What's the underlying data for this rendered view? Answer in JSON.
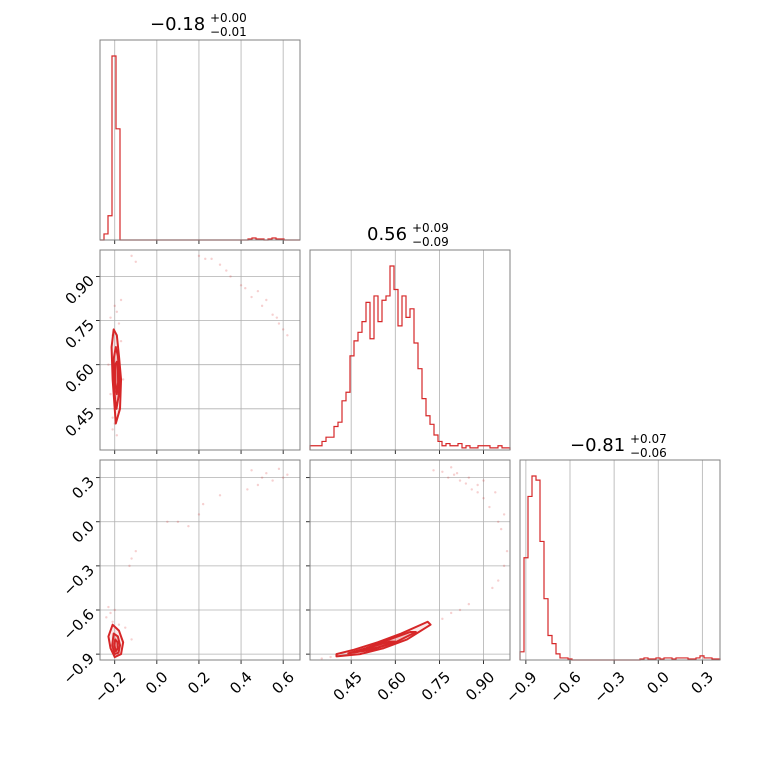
{
  "chart_data": {
    "type": "corner",
    "color": "#d62728",
    "grid": true,
    "parameters": [
      {
        "index": 0,
        "range": [
          -0.27,
          0.68
        ],
        "ticks": [
          "−0.2",
          "0.0",
          "0.2",
          "0.4",
          "0.6"
        ],
        "tick_values": [
          -0.2,
          0.0,
          0.2,
          0.4,
          0.6
        ]
      },
      {
        "index": 1,
        "range": [
          0.31,
          0.99
        ],
        "ticks": [
          "0.45",
          "0.60",
          "0.75",
          "0.90"
        ],
        "tick_values": [
          0.45,
          0.6,
          0.75,
          0.9
        ]
      },
      {
        "index": 2,
        "range": [
          -0.94,
          0.42
        ],
        "ticks": [
          "−0.9",
          "−0.6",
          "−0.3",
          "0.0",
          "0.3"
        ],
        "tick_values": [
          -0.9,
          -0.6,
          -0.3,
          0.0,
          0.3
        ]
      }
    ],
    "titles": [
      {
        "median": "−0.18",
        "plus": "+0.00",
        "minus": "−0.01"
      },
      {
        "median": "0.56",
        "plus": "+0.09",
        "minus": "−0.09"
      },
      {
        "median": "−0.81",
        "plus": "+0.07",
        "minus": "−0.06"
      }
    ],
    "histograms": [
      {
        "bin_start": -0.27,
        "bin_width": 0.019,
        "counts": [
          0,
          0.03,
          0.12,
          0.91,
          0.55,
          0,
          0,
          0,
          0,
          0,
          0,
          0,
          0,
          0,
          0,
          0,
          0,
          0,
          0,
          0,
          0,
          0,
          0,
          0,
          0,
          0,
          0,
          0,
          0,
          0,
          0,
          0,
          0,
          0,
          0,
          0,
          0,
          0.005,
          0.01,
          0.005,
          0.005,
          0,
          0.005,
          0.01,
          0.005,
          0.005,
          0,
          0,
          0,
          0
        ]
      },
      {
        "bin_start": 0.31,
        "bin_width": 0.0136,
        "counts": [
          0.02,
          0.02,
          0.02,
          0.04,
          0.06,
          0.06,
          0.11,
          0.13,
          0.23,
          0.27,
          0.44,
          0.51,
          0.55,
          0.6,
          0.69,
          0.52,
          0.72,
          0.6,
          0.7,
          0.72,
          0.86,
          0.75,
          0.58,
          0.72,
          0.62,
          0.66,
          0.5,
          0.38,
          0.24,
          0.16,
          0.12,
          0.07,
          0.04,
          0.02,
          0.03,
          0.02,
          0.02,
          0.03,
          0.01,
          0.02,
          0.01,
          0.01,
          0.02,
          0.02,
          0.02,
          0.01,
          0.01,
          0.02,
          0.01,
          0.01
        ]
      },
      {
        "bin_start": -0.94,
        "bin_width": 0.0272,
        "counts": [
          0.04,
          0.5,
          0.8,
          0.9,
          0.88,
          0.58,
          0.3,
          0.12,
          0.08,
          0.03,
          0.01,
          0.01,
          0.005,
          0,
          0,
          0,
          0,
          0,
          0,
          0,
          0,
          0,
          0,
          0,
          0,
          0,
          0,
          0,
          0,
          0,
          0.005,
          0.01,
          0.005,
          0.005,
          0.01,
          0.005,
          0.01,
          0.01,
          0.005,
          0.01,
          0.01,
          0.01,
          0.005,
          0.005,
          0.01,
          0.02,
          0.01,
          0.01,
          0.005,
          0.005
        ]
      }
    ],
    "scatter_2d": [
      {
        "x_param": 0,
        "y_param": 1,
        "points": [
          [
            -0.12,
            0.97
          ],
          [
            0.2,
            0.97
          ],
          [
            0.23,
            0.96
          ],
          [
            0.26,
            0.96
          ],
          [
            0.3,
            0.94
          ],
          [
            0.35,
            0.9
          ],
          [
            0.4,
            0.87
          ],
          [
            0.45,
            0.83
          ],
          [
            0.5,
            0.8
          ],
          [
            0.55,
            0.77
          ],
          [
            0.58,
            0.74
          ],
          [
            0.6,
            0.72
          ],
          [
            0.62,
            0.7
          ],
          [
            0.48,
            0.85
          ],
          [
            0.52,
            0.82
          ],
          [
            0.57,
            0.76
          ],
          [
            0.42,
            0.86
          ],
          [
            0.33,
            0.92
          ],
          [
            -0.1,
            0.95
          ],
          [
            -0.19,
            0.78
          ],
          [
            -0.2,
            0.8
          ],
          [
            -0.22,
            0.76
          ],
          [
            -0.17,
            0.82
          ],
          [
            -0.18,
            0.74
          ],
          [
            -0.21,
            0.7
          ],
          [
            -0.2,
            0.4
          ],
          [
            -0.21,
            0.38
          ],
          [
            -0.19,
            0.36
          ],
          [
            -0.2,
            0.45
          ],
          [
            -0.22,
            0.5
          ],
          [
            -0.18,
            0.62
          ],
          [
            -0.16,
            0.55
          ],
          [
            -0.23,
            0.6
          ],
          [
            -0.17,
            0.68
          ],
          [
            -0.19,
            0.66
          ],
          [
            -0.2,
            0.48
          ],
          [
            -0.21,
            0.42
          ],
          [
            -0.18,
            0.44
          ]
        ],
        "contours": [
          [
            [
              -0.195,
              0.4
            ],
            [
              -0.175,
              0.45
            ],
            [
              -0.17,
              0.55
            ],
            [
              -0.18,
              0.63
            ],
            [
              -0.19,
              0.7
            ],
            [
              -0.205,
              0.72
            ],
            [
              -0.215,
              0.66
            ],
            [
              -0.21,
              0.55
            ],
            [
              -0.2,
              0.45
            ]
          ],
          [
            [
              -0.192,
              0.45
            ],
            [
              -0.18,
              0.5
            ],
            [
              -0.178,
              0.56
            ],
            [
              -0.185,
              0.63
            ],
            [
              -0.195,
              0.66
            ],
            [
              -0.205,
              0.62
            ],
            [
              -0.205,
              0.54
            ],
            [
              -0.198,
              0.48
            ]
          ],
          [
            [
              -0.19,
              0.5
            ],
            [
              -0.184,
              0.54
            ],
            [
              -0.185,
              0.58
            ],
            [
              -0.19,
              0.61
            ],
            [
              -0.198,
              0.6
            ],
            [
              -0.198,
              0.54
            ]
          ]
        ]
      },
      {
        "x_param": 0,
        "y_param": 2,
        "points": [
          [
            0.45,
            0.35
          ],
          [
            0.5,
            0.3
          ],
          [
            0.52,
            0.33
          ],
          [
            0.55,
            0.28
          ],
          [
            0.58,
            0.36
          ],
          [
            0.6,
            0.3
          ],
          [
            0.62,
            0.32
          ],
          [
            0.48,
            0.25
          ],
          [
            0.43,
            0.22
          ],
          [
            0.3,
            0.18
          ],
          [
            0.22,
            0.12
          ],
          [
            0.2,
            0.05
          ],
          [
            0.1,
            0.0
          ],
          [
            0.15,
            -0.03
          ],
          [
            0.05,
            0.0
          ],
          [
            -0.1,
            -0.2
          ],
          [
            -0.12,
            -0.25
          ],
          [
            -0.13,
            -0.3
          ],
          [
            -0.23,
            -0.58
          ],
          [
            -0.22,
            -0.62
          ],
          [
            -0.2,
            -0.6
          ],
          [
            -0.24,
            -0.65
          ],
          [
            -0.18,
            -0.7
          ],
          [
            -0.15,
            -0.72
          ],
          [
            -0.12,
            -0.8
          ],
          [
            -0.21,
            -0.68
          ],
          [
            -0.19,
            -0.88
          ],
          [
            -0.2,
            -0.92
          ]
        ],
        "contours": [
          [
            [
              -0.21,
              -0.7
            ],
            [
              -0.18,
              -0.74
            ],
            [
              -0.16,
              -0.82
            ],
            [
              -0.17,
              -0.9
            ],
            [
              -0.2,
              -0.92
            ],
            [
              -0.22,
              -0.86
            ],
            [
              -0.23,
              -0.78
            ]
          ],
          [
            [
              -0.205,
              -0.76
            ],
            [
              -0.185,
              -0.78
            ],
            [
              -0.175,
              -0.84
            ],
            [
              -0.182,
              -0.89
            ],
            [
              -0.2,
              -0.9
            ],
            [
              -0.212,
              -0.84
            ]
          ],
          [
            [
              -0.198,
              -0.8
            ],
            [
              -0.186,
              -0.82
            ],
            [
              -0.185,
              -0.86
            ],
            [
              -0.195,
              -0.88
            ],
            [
              -0.202,
              -0.84
            ]
          ]
        ]
      },
      {
        "x_param": 1,
        "y_param": 2,
        "points": [
          [
            0.73,
            0.35
          ],
          [
            0.76,
            0.34
          ],
          [
            0.78,
            0.3
          ],
          [
            0.8,
            0.32
          ],
          [
            0.82,
            0.28
          ],
          [
            0.84,
            0.26
          ],
          [
            0.86,
            0.22
          ],
          [
            0.88,
            0.2
          ],
          [
            0.9,
            0.16
          ],
          [
            0.92,
            0.1
          ],
          [
            0.95,
            0.0
          ],
          [
            0.96,
            -0.05
          ],
          [
            0.98,
            -0.2
          ],
          [
            0.97,
            -0.3
          ],
          [
            0.95,
            -0.4
          ],
          [
            0.93,
            -0.45
          ],
          [
            0.85,
            0.3
          ],
          [
            0.79,
            0.37
          ],
          [
            0.81,
            0.33
          ],
          [
            0.88,
            0.25
          ],
          [
            0.9,
            0.28
          ],
          [
            0.94,
            0.2
          ],
          [
            0.97,
            0.05
          ],
          [
            0.79,
            -0.62
          ],
          [
            0.82,
            -0.6
          ],
          [
            0.85,
            -0.56
          ],
          [
            0.76,
            -0.66
          ],
          [
            0.38,
            -0.92
          ],
          [
            0.35,
            -0.93
          ]
        ],
        "contours": [
          [
            [
              0.4,
              -0.915
            ],
            [
              0.48,
              -0.9
            ],
            [
              0.56,
              -0.86
            ],
            [
              0.64,
              -0.8
            ],
            [
              0.72,
              -0.7
            ],
            [
              0.71,
              -0.68
            ],
            [
              0.62,
              -0.76
            ],
            [
              0.54,
              -0.82
            ],
            [
              0.46,
              -0.87
            ],
            [
              0.4,
              -0.9
            ]
          ],
          [
            [
              0.44,
              -0.895
            ],
            [
              0.52,
              -0.87
            ],
            [
              0.6,
              -0.82
            ],
            [
              0.67,
              -0.75
            ],
            [
              0.65,
              -0.75
            ],
            [
              0.58,
              -0.8
            ],
            [
              0.5,
              -0.86
            ]
          ],
          [
            [
              0.48,
              -0.88
            ],
            [
              0.54,
              -0.855
            ],
            [
              0.6,
              -0.815
            ],
            [
              0.58,
              -0.815
            ],
            [
              0.52,
              -0.85
            ]
          ]
        ]
      }
    ]
  }
}
